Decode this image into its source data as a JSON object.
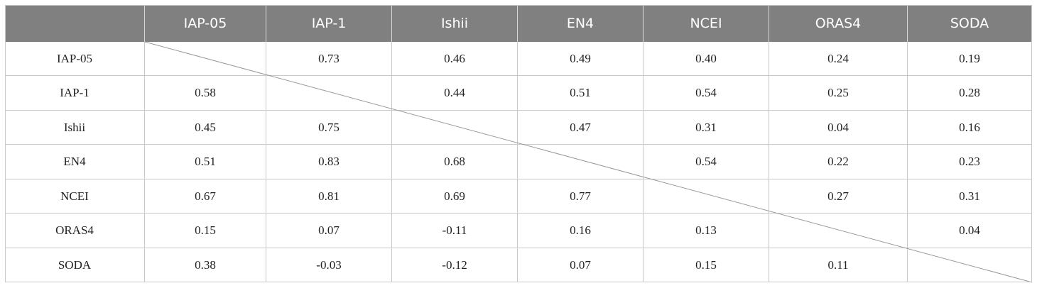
{
  "header": {
    "columns": [
      "IAP-05",
      "IAP-1",
      "Ishii",
      "EN4",
      "NCEI",
      "ORAS4",
      "SODA"
    ]
  },
  "table": {
    "rows": [
      {
        "label": "IAP-05",
        "cells": [
          null,
          "0.73",
          "0.46",
          "0.49",
          "0.40",
          "0.24",
          "0.19"
        ]
      },
      {
        "label": "IAP-1",
        "cells": [
          "0.58",
          null,
          "0.44",
          "0.51",
          "0.54",
          "0.25",
          "0.28"
        ]
      },
      {
        "label": "Ishii",
        "cells": [
          "0.45",
          "0.75",
          null,
          "0.47",
          "0.31",
          "0.04",
          "0.16"
        ]
      },
      {
        "label": "EN4",
        "cells": [
          "0.51",
          "0.83",
          "0.68",
          null,
          "0.54",
          "0.22",
          "0.23"
        ]
      },
      {
        "label": "NCEI",
        "cells": [
          "0.67",
          "0.81",
          "0.69",
          "0.77",
          null,
          "0.27",
          "0.31"
        ]
      },
      {
        "label": "ORAS4",
        "cells": [
          "0.15",
          "0.07",
          "-0.11",
          "0.16",
          "0.13",
          null,
          "0.04"
        ]
      },
      {
        "label": "SODA",
        "cells": [
          "0.38",
          "-0.03",
          "-0.12",
          "0.07",
          "0.15",
          "0.11",
          null
        ]
      }
    ]
  }
}
